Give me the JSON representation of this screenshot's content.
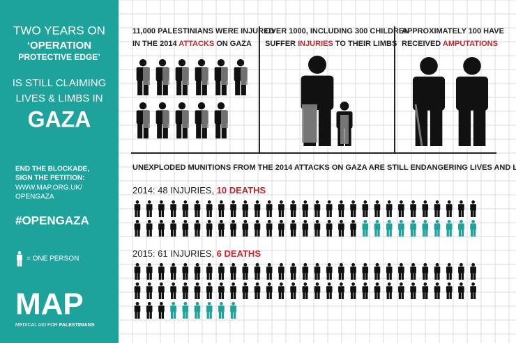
{
  "sidebar": {
    "lines": [
      "TWO YEARS ON",
      "‘OPERATION",
      "PROTECTIVE EDGE’",
      "IS STILL CLAIMING",
      "LIVES & LIMBS IN",
      "GAZA"
    ],
    "cta": [
      "END THE BLOCKADE,",
      "SIGN THE PETITION:"
    ],
    "url": [
      "WWW.MAP.ORG.UK/",
      "OPENGAZA"
    ],
    "hashtag": "#OPENGAZA",
    "legend": "= ONE PERSON",
    "logo": "MAP",
    "logo_sub": "MEDICAL AID FOR ",
    "logo_sub_bold": "PALESTINIANS"
  },
  "panels": [
    {
      "line1": "11,000 PALESTINIANS WERE INJURED",
      "line2": "IN THE 2014 ",
      "highlight": "ATTACKS",
      "line2_end": " ON GAZA"
    },
    {
      "line1": "OVER 1000, INCLUDING 300 CHILDREN",
      "line2": "SUFFER ",
      "highlight": "INJURIES",
      "line2_end": " TO THEIR LIMBS"
    },
    {
      "line1": "APPROXIMATELY 100 HAVE",
      "line2": "RECEIVED ",
      "highlight": "AMPUTATIONS"
    }
  ],
  "munitions_heading": "UNEXPLODED MUNITIONS FROM THE 2014 ATTACKS ON GAZA ARE STILL ENDANGERING LIVES AND LIMBS IN GAZA:",
  "years": [
    {
      "label": "2014: 48 INJURIES, ",
      "deaths_label": "10 DEATHS",
      "injuries": 48,
      "deaths": 10
    },
    {
      "label": "2015: 61 INJURIES, ",
      "deaths_label": "6 DEATHS",
      "injuries": 61,
      "deaths": 6
    }
  ]
}
